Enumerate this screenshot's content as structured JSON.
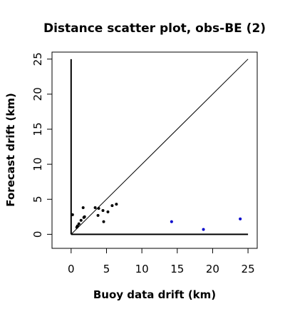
{
  "chart_data": {
    "type": "scatter",
    "title": "Distance scatter plot, obs-BE (2)",
    "xlabel": "Buoy data drift (km)",
    "ylabel": "Forecast drift (km)",
    "xlim": [
      -2.7,
      26.3
    ],
    "ylim": [
      -2.0,
      26.0
    ],
    "xticks": [
      0,
      5,
      10,
      15,
      20,
      25
    ],
    "yticks": [
      0,
      5,
      10,
      15,
      20,
      25
    ],
    "grid": false,
    "reference_lines": [
      {
        "type": "diagonal",
        "x": [
          0,
          25
        ],
        "y": [
          0,
          25
        ]
      },
      {
        "type": "horizontal",
        "x": [
          0,
          25
        ],
        "y": [
          0,
          0
        ]
      },
      {
        "type": "vertical",
        "x": [
          0,
          0
        ],
        "y": [
          0,
          25
        ]
      }
    ],
    "series": [
      {
        "color": "#000000",
        "points": [
          [
            0.2,
            2.8
          ],
          [
            0.8,
            1.0
          ],
          [
            0.9,
            1.2
          ],
          [
            1.1,
            1.5
          ],
          [
            1.4,
            2.0
          ],
          [
            1.7,
            3.8
          ],
          [
            1.8,
            2.4
          ],
          [
            1.9,
            2.5
          ],
          [
            3.4,
            3.8
          ],
          [
            3.8,
            2.7
          ],
          [
            3.9,
            3.7
          ],
          [
            4.5,
            3.4
          ],
          [
            4.6,
            1.8
          ],
          [
            5.2,
            3.2
          ],
          [
            5.8,
            4.1
          ],
          [
            6.4,
            4.3
          ]
        ]
      },
      {
        "color": "#0000cc",
        "points": [
          [
            14.2,
            1.8
          ],
          [
            18.7,
            0.7
          ],
          [
            23.9,
            2.2
          ]
        ]
      }
    ]
  }
}
